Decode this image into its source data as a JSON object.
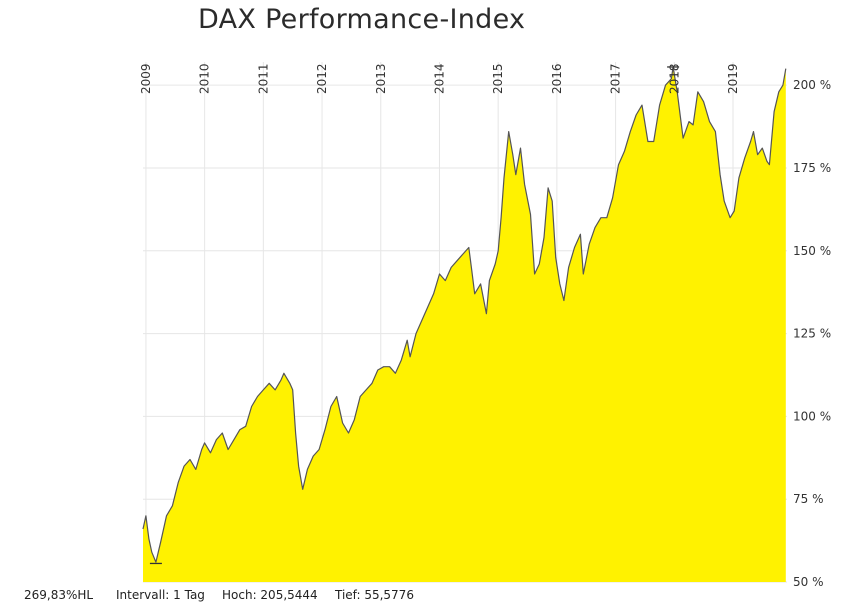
{
  "title": "DAX Performance-Index",
  "footer": {
    "change": "269,83%HL",
    "interval": "Intervall: 1 Tag",
    "high": "Hoch: 205,5444",
    "low": "Tief: 55,5776"
  },
  "colors": {
    "area_fill": "#fff200",
    "line": "#555555",
    "grid": "#e6e6e6",
    "text": "#333333"
  },
  "chart_data": {
    "type": "area",
    "title": "DAX Performance-Index",
    "xlabel": "",
    "ylabel": "",
    "x_ticks": [
      "2009",
      "2010",
      "2011",
      "2012",
      "2013",
      "2014",
      "2015",
      "2016",
      "2017",
      "2018",
      "2019"
    ],
    "y_ticks": [
      "50 %",
      "75 %",
      "100 %",
      "125 %",
      "150 %",
      "175 %",
      "200 %"
    ],
    "ylim": [
      50,
      207
    ],
    "xlim": [
      2008.95,
      2019.92
    ],
    "grid": true,
    "high_marker": {
      "x": 2017.98,
      "y": 205.5
    },
    "low_marker": {
      "x": 2009.17,
      "y": 55.6
    },
    "series": [
      {
        "values": [
          [
            2008.95,
            66
          ],
          [
            2009.0,
            70
          ],
          [
            2009.05,
            63
          ],
          [
            2009.1,
            59
          ],
          [
            2009.17,
            56
          ],
          [
            2009.25,
            62
          ],
          [
            2009.35,
            70
          ],
          [
            2009.45,
            73
          ],
          [
            2009.55,
            80
          ],
          [
            2009.65,
            85
          ],
          [
            2009.75,
            87
          ],
          [
            2009.85,
            84
          ],
          [
            2009.95,
            90
          ],
          [
            2010.0,
            92
          ],
          [
            2010.1,
            89
          ],
          [
            2010.2,
            93
          ],
          [
            2010.3,
            95
          ],
          [
            2010.4,
            90
          ],
          [
            2010.5,
            93
          ],
          [
            2010.6,
            96
          ],
          [
            2010.7,
            97
          ],
          [
            2010.8,
            103
          ],
          [
            2010.9,
            106
          ],
          [
            2011.0,
            108
          ],
          [
            2011.1,
            110
          ],
          [
            2011.2,
            108
          ],
          [
            2011.3,
            111
          ],
          [
            2011.35,
            113
          ],
          [
            2011.45,
            110
          ],
          [
            2011.5,
            108
          ],
          [
            2011.55,
            95
          ],
          [
            2011.6,
            85
          ],
          [
            2011.67,
            78
          ],
          [
            2011.75,
            84
          ],
          [
            2011.85,
            88
          ],
          [
            2011.95,
            90
          ],
          [
            2012.05,
            96
          ],
          [
            2012.15,
            103
          ],
          [
            2012.25,
            106
          ],
          [
            2012.35,
            98
          ],
          [
            2012.45,
            95
          ],
          [
            2012.55,
            99
          ],
          [
            2012.65,
            106
          ],
          [
            2012.75,
            108
          ],
          [
            2012.85,
            110
          ],
          [
            2012.95,
            114
          ],
          [
            2013.05,
            115
          ],
          [
            2013.15,
            115
          ],
          [
            2013.25,
            113
          ],
          [
            2013.35,
            117
          ],
          [
            2013.45,
            123
          ],
          [
            2013.5,
            118
          ],
          [
            2013.6,
            125
          ],
          [
            2013.7,
            129
          ],
          [
            2013.8,
            133
          ],
          [
            2013.9,
            137
          ],
          [
            2014.0,
            143
          ],
          [
            2014.1,
            141
          ],
          [
            2014.2,
            145
          ],
          [
            2014.3,
            147
          ],
          [
            2014.4,
            149
          ],
          [
            2014.5,
            151
          ],
          [
            2014.55,
            144
          ],
          [
            2014.6,
            137
          ],
          [
            2014.7,
            140
          ],
          [
            2014.8,
            131
          ],
          [
            2014.85,
            141
          ],
          [
            2014.95,
            146
          ],
          [
            2015.0,
            150
          ],
          [
            2015.05,
            160
          ],
          [
            2015.1,
            172
          ],
          [
            2015.18,
            186
          ],
          [
            2015.25,
            179
          ],
          [
            2015.3,
            173
          ],
          [
            2015.38,
            181
          ],
          [
            2015.45,
            170
          ],
          [
            2015.55,
            161
          ],
          [
            2015.62,
            143
          ],
          [
            2015.7,
            146
          ],
          [
            2015.78,
            154
          ],
          [
            2015.85,
            169
          ],
          [
            2015.92,
            165
          ],
          [
            2015.98,
            148
          ],
          [
            2016.05,
            140
          ],
          [
            2016.12,
            135
          ],
          [
            2016.2,
            145
          ],
          [
            2016.3,
            151
          ],
          [
            2016.4,
            155
          ],
          [
            2016.45,
            143
          ],
          [
            2016.55,
            152
          ],
          [
            2016.65,
            157
          ],
          [
            2016.75,
            160
          ],
          [
            2016.85,
            160
          ],
          [
            2016.95,
            166
          ],
          [
            2017.05,
            176
          ],
          [
            2017.15,
            180
          ],
          [
            2017.25,
            186
          ],
          [
            2017.35,
            191
          ],
          [
            2017.45,
            194
          ],
          [
            2017.55,
            183
          ],
          [
            2017.65,
            183
          ],
          [
            2017.75,
            194
          ],
          [
            2017.85,
            200
          ],
          [
            2017.95,
            202
          ],
          [
            2017.98,
            205.5
          ],
          [
            2018.05,
            198
          ],
          [
            2018.15,
            184
          ],
          [
            2018.25,
            189
          ],
          [
            2018.32,
            188
          ],
          [
            2018.4,
            198
          ],
          [
            2018.5,
            195
          ],
          [
            2018.6,
            189
          ],
          [
            2018.7,
            186
          ],
          [
            2018.78,
            173
          ],
          [
            2018.85,
            165
          ],
          [
            2018.95,
            160
          ],
          [
            2019.02,
            162
          ],
          [
            2019.1,
            172
          ],
          [
            2019.2,
            178
          ],
          [
            2019.3,
            183
          ],
          [
            2019.35,
            186
          ],
          [
            2019.42,
            179
          ],
          [
            2019.5,
            181
          ],
          [
            2019.58,
            177
          ],
          [
            2019.62,
            176
          ],
          [
            2019.7,
            192
          ],
          [
            2019.78,
            198
          ],
          [
            2019.85,
            200
          ],
          [
            2019.9,
            205
          ]
        ]
      }
    ]
  }
}
